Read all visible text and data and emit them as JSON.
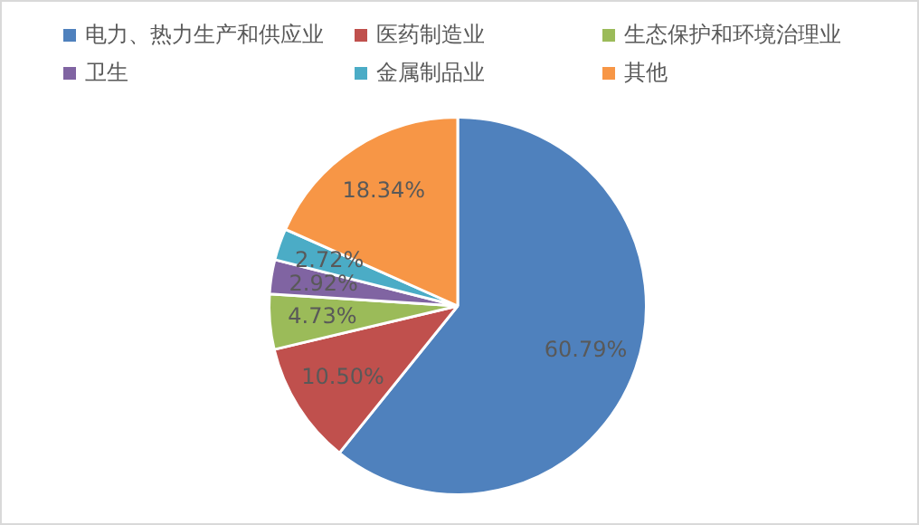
{
  "chart_data": {
    "type": "pie",
    "categories": [
      "电力、热力生产和供应业",
      "医药制造业",
      "生态保护和环境治理业",
      "卫生",
      "金属制品业",
      "其他"
    ],
    "values": [
      60.79,
      10.5,
      4.73,
      2.92,
      2.72,
      18.34
    ],
    "colors": [
      "#4f81bd",
      "#c0504d",
      "#9bbb59",
      "#8064a2",
      "#4bacc6",
      "#f79646"
    ],
    "value_labels": [
      "60.79%",
      "10.50%",
      "4.73%",
      "2.92%",
      "2.72%",
      "18.34%"
    ],
    "legend": "top"
  }
}
